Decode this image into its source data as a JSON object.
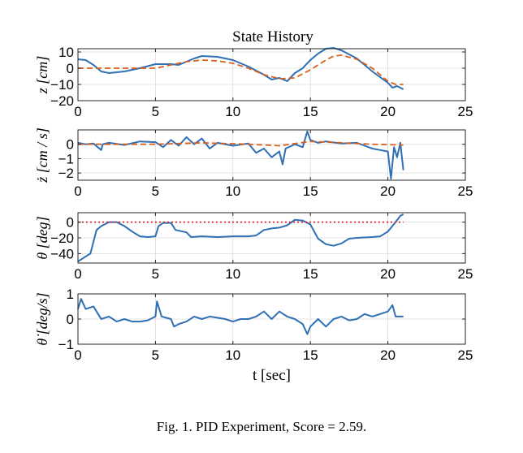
{
  "figure": {
    "title": "State History",
    "caption": "Fig. 1.  PID Experiment, Score = 2.59."
  },
  "chart_data": [
    {
      "type": "line",
      "ylabel": "z [cm]",
      "xlim": [
        0,
        25
      ],
      "ylim": [
        -20,
        12
      ],
      "xticks": [
        0,
        5,
        10,
        15,
        20,
        25
      ],
      "yticks": [
        10,
        0,
        -10,
        -20
      ],
      "grid": true,
      "series": [
        {
          "style": "solid",
          "color": "#2f6fb5",
          "points": [
            [
              0,
              5.5
            ],
            [
              0.5,
              5
            ],
            [
              1,
              2
            ],
            [
              1.5,
              -2
            ],
            [
              2,
              -3
            ],
            [
              3,
              -2
            ],
            [
              4,
              0
            ],
            [
              5,
              2.5
            ],
            [
              6,
              2.5
            ],
            [
              6.5,
              2
            ],
            [
              7,
              4
            ],
            [
              7.5,
              6
            ],
            [
              8,
              7.5
            ],
            [
              9,
              7
            ],
            [
              10,
              5
            ],
            [
              11,
              1
            ],
            [
              12,
              -4
            ],
            [
              12.5,
              -7
            ],
            [
              13,
              -6
            ],
            [
              13.5,
              -8
            ],
            [
              14,
              -3
            ],
            [
              14.5,
              0
            ],
            [
              15,
              5
            ],
            [
              15.5,
              9
            ],
            [
              16,
              12
            ],
            [
              16.5,
              12.5
            ],
            [
              17,
              11
            ],
            [
              18,
              6
            ],
            [
              19,
              -2
            ],
            [
              20,
              -9
            ],
            [
              20.3,
              -12
            ],
            [
              20.6,
              -11
            ],
            [
              21,
              -13
            ]
          ]
        },
        {
          "style": "dashed",
          "color": "#d95f1c",
          "points": [
            [
              0,
              0
            ],
            [
              5,
              0
            ],
            [
              6,
              2
            ],
            [
              7,
              4
            ],
            [
              8,
              5
            ],
            [
              9,
              4.5
            ],
            [
              10,
              3
            ],
            [
              11,
              0
            ],
            [
              12,
              -4
            ],
            [
              13,
              -6.5
            ],
            [
              14,
              -6
            ],
            [
              15,
              -1
            ],
            [
              16,
              5
            ],
            [
              16.5,
              7.5
            ],
            [
              17,
              8
            ],
            [
              18,
              5.5
            ],
            [
              19,
              0
            ],
            [
              20,
              -8
            ],
            [
              20.5,
              -10
            ],
            [
              21,
              -10
            ]
          ]
        }
      ]
    },
    {
      "type": "line",
      "ylabel": "ż [cm / s]",
      "xlim": [
        0,
        25
      ],
      "ylim": [
        -2.5,
        1
      ],
      "xticks": [
        0,
        5,
        10,
        15,
        20,
        25
      ],
      "yticks": [
        0,
        -1,
        -2
      ],
      "grid": true,
      "series": [
        {
          "style": "solid",
          "color": "#2f6fb5",
          "points": [
            [
              0,
              0.1
            ],
            [
              0.5,
              0
            ],
            [
              1,
              0.05
            ],
            [
              1.5,
              -0.4
            ],
            [
              1.6,
              0
            ],
            [
              2,
              0.1
            ],
            [
              3,
              -0.05
            ],
            [
              4,
              0.2
            ],
            [
              5,
              0.15
            ],
            [
              5.5,
              -0.2
            ],
            [
              6,
              0.3
            ],
            [
              6.5,
              -0.1
            ],
            [
              7,
              0.5
            ],
            [
              7.5,
              0
            ],
            [
              8,
              0.4
            ],
            [
              8.5,
              -0.3
            ],
            [
              9,
              0.1
            ],
            [
              10,
              -0.1
            ],
            [
              11,
              0.05
            ],
            [
              11.5,
              -0.6
            ],
            [
              12,
              -0.3
            ],
            [
              12.5,
              -0.9
            ],
            [
              13,
              -0.5
            ],
            [
              13.2,
              -1.4
            ],
            [
              13.4,
              -0.3
            ],
            [
              14,
              0
            ],
            [
              14.5,
              -0.2
            ],
            [
              14.8,
              0.9
            ],
            [
              15,
              0.3
            ],
            [
              15.5,
              0.1
            ],
            [
              16,
              0.2
            ],
            [
              17,
              0.05
            ],
            [
              18,
              0.1
            ],
            [
              18.5,
              -0.1
            ],
            [
              19,
              -0.3
            ],
            [
              19.5,
              -0.4
            ],
            [
              20,
              -0.5
            ],
            [
              20.2,
              -2.4
            ],
            [
              20.4,
              -0.2
            ],
            [
              20.6,
              -0.9
            ],
            [
              20.8,
              0.1
            ],
            [
              21,
              -1.8
            ]
          ]
        },
        {
          "style": "dashed",
          "color": "#d95f1c",
          "points": [
            [
              0,
              0
            ],
            [
              5,
              0
            ],
            [
              8,
              0.1
            ],
            [
              11,
              0
            ],
            [
              13,
              -0.1
            ],
            [
              15,
              0.2
            ],
            [
              17,
              0.1
            ],
            [
              19,
              0
            ],
            [
              21,
              -0.05
            ]
          ]
        }
      ]
    },
    {
      "type": "line",
      "ylabel": "θ [deg]",
      "xlim": [
        0,
        25
      ],
      "ylim": [
        -52,
        12
      ],
      "xticks": [
        0,
        5,
        10,
        15,
        20,
        25
      ],
      "yticks": [
        0,
        -20,
        -40
      ],
      "grid": true,
      "series": [
        {
          "style": "solid",
          "color": "#2f6fb5",
          "points": [
            [
              0,
              -50
            ],
            [
              0.4,
              -45
            ],
            [
              0.8,
              -40
            ],
            [
              1.2,
              -10
            ],
            [
              1.5,
              -5
            ],
            [
              2,
              0
            ],
            [
              2.5,
              0
            ],
            [
              3,
              -5
            ],
            [
              3.5,
              -12
            ],
            [
              4,
              -18
            ],
            [
              4.5,
              -19
            ],
            [
              5,
              -18
            ],
            [
              5.2,
              -5
            ],
            [
              5.5,
              -1
            ],
            [
              6,
              -1
            ],
            [
              6.3,
              -10
            ],
            [
              7,
              -13
            ],
            [
              7.3,
              -19
            ],
            [
              8,
              -18
            ],
            [
              9,
              -19
            ],
            [
              10,
              -18
            ],
            [
              11,
              -18
            ],
            [
              11.5,
              -17
            ],
            [
              12,
              -10
            ],
            [
              12.5,
              -8
            ],
            [
              13,
              -7
            ],
            [
              13.5,
              -4
            ],
            [
              14,
              3
            ],
            [
              14.5,
              2
            ],
            [
              15,
              -3
            ],
            [
              15.5,
              -21
            ],
            [
              16,
              -28
            ],
            [
              16.5,
              -30
            ],
            [
              17,
              -27
            ],
            [
              17.5,
              -21
            ],
            [
              18,
              -20
            ],
            [
              19,
              -19
            ],
            [
              19.5,
              -18
            ],
            [
              20,
              -12
            ],
            [
              20.5,
              0
            ],
            [
              20.8,
              8
            ],
            [
              21,
              10
            ]
          ]
        },
        {
          "style": "dotted",
          "color": "#e0262a",
          "points": [
            [
              0,
              0
            ],
            [
              21,
              0
            ]
          ]
        }
      ]
    },
    {
      "type": "line",
      "ylabel": "θ̇ [deg/s]",
      "xlabel": "t [sec]",
      "xlim": [
        0,
        25
      ],
      "ylim": [
        -1,
        1
      ],
      "xticks": [
        0,
        5,
        10,
        15,
        20,
        25
      ],
      "yticks": [
        1,
        0,
        -1
      ],
      "grid": true,
      "series": [
        {
          "style": "solid",
          "color": "#2f6fb5",
          "points": [
            [
              0,
              0.4
            ],
            [
              0.2,
              0.8
            ],
            [
              0.5,
              0.4
            ],
            [
              1,
              0.5
            ],
            [
              1.3,
              0.2
            ],
            [
              1.5,
              0
            ],
            [
              2,
              0.1
            ],
            [
              2.5,
              -0.1
            ],
            [
              3,
              0
            ],
            [
              3.5,
              -0.1
            ],
            [
              4,
              -0.1
            ],
            [
              4.5,
              -0.05
            ],
            [
              5,
              0.1
            ],
            [
              5.1,
              0.7
            ],
            [
              5.4,
              0.1
            ],
            [
              6,
              0
            ],
            [
              6.2,
              -0.3
            ],
            [
              6.5,
              -0.2
            ],
            [
              7,
              -0.1
            ],
            [
              7.5,
              0.1
            ],
            [
              8,
              0
            ],
            [
              8.5,
              0.1
            ],
            [
              9,
              0.05
            ],
            [
              9.5,
              0
            ],
            [
              10,
              -0.1
            ],
            [
              10.5,
              0
            ],
            [
              11,
              0
            ],
            [
              11.5,
              0.1
            ],
            [
              12,
              0.3
            ],
            [
              12.5,
              0
            ],
            [
              13,
              0.3
            ],
            [
              13.5,
              0.1
            ],
            [
              14,
              0
            ],
            [
              14.5,
              -0.2
            ],
            [
              14.8,
              -0.6
            ],
            [
              15,
              -0.3
            ],
            [
              15.5,
              0
            ],
            [
              16,
              -0.3
            ],
            [
              16.5,
              0
            ],
            [
              17,
              0.1
            ],
            [
              17.5,
              -0.05
            ],
            [
              18,
              0
            ],
            [
              18.5,
              0.2
            ],
            [
              19,
              0.1
            ],
            [
              19.5,
              0.2
            ],
            [
              20,
              0.3
            ],
            [
              20.3,
              0.55
            ],
            [
              20.5,
              0.1
            ],
            [
              21,
              0.1
            ]
          ]
        }
      ]
    }
  ]
}
